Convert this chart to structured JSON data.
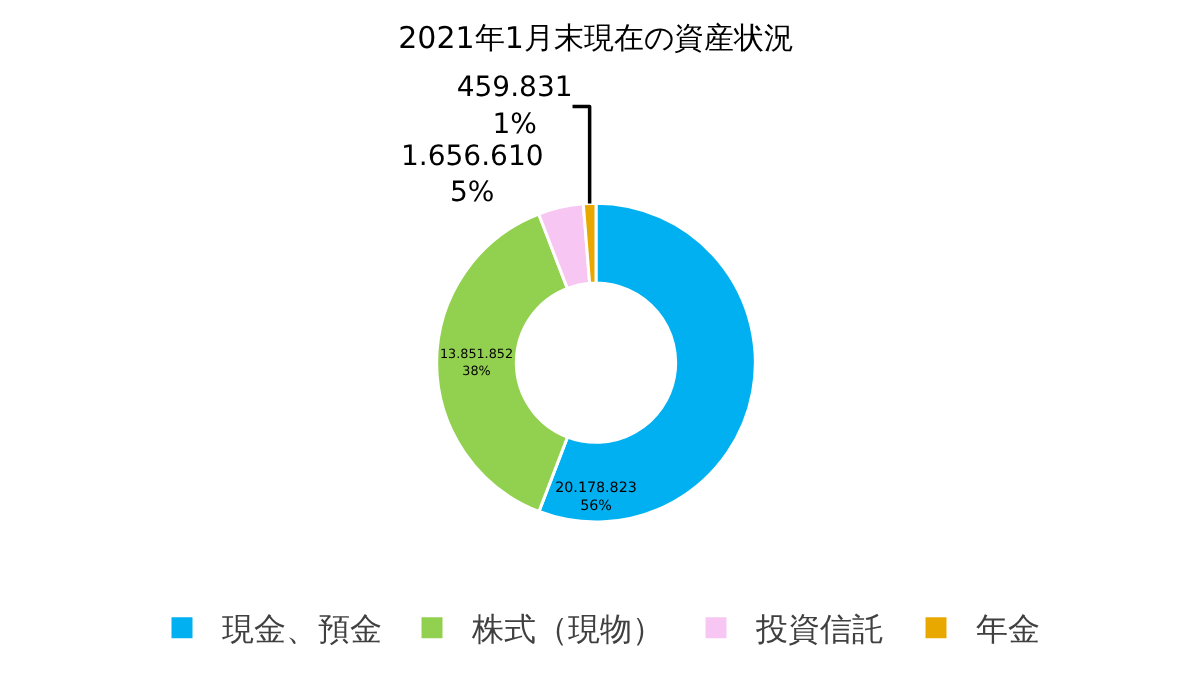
{
  "chart_data": {
    "type": "donut",
    "title": "2021年1月末現在の資産状況",
    "categories": [
      "現金、預金",
      "株式（現物）",
      "投資信託",
      "年金"
    ],
    "values": [
      20178823,
      13851852,
      1656610,
      459831
    ],
    "value_labels": [
      "20.178.823\n56%",
      "13.851.852\n38%",
      "1.656.610\n5%",
      "459.831\n1%"
    ],
    "colors": [
      "#00b0f0",
      "#92d050",
      "#f7c6f2",
      "#e8a800"
    ],
    "legend": "bottom"
  }
}
